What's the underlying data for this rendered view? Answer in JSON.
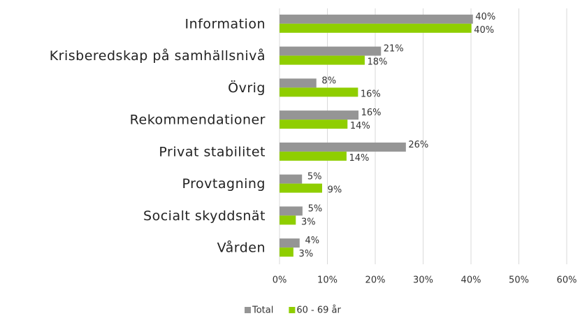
{
  "chart_data": {
    "type": "bar",
    "orientation": "horizontal",
    "categories": [
      "Information",
      "Krisberedskap på samhällsnivå",
      "Övrig",
      "Rekommendationer",
      "Privat stabilitet",
      "Provtagning",
      "Socialt skyddsnät",
      "Vården"
    ],
    "series": [
      {
        "name": "Total",
        "color": "#959595",
        "values": [
          40.4,
          21.2,
          7.7,
          16.5,
          26.4,
          4.7,
          4.8,
          4.2
        ],
        "value_labels": [
          "40%",
          "21%",
          "8%",
          "16%",
          "26%",
          "5%",
          "5%",
          "4%"
        ]
      },
      {
        "name": "60 - 69 år",
        "color": "#8fce00",
        "values": [
          40.1,
          17.8,
          16.4,
          14.2,
          14.0,
          8.9,
          3.4,
          2.9
        ],
        "value_labels": [
          "40%",
          "18%",
          "16%",
          "14%",
          "14%",
          "9%",
          "3%",
          "3%"
        ]
      }
    ],
    "xlim": [
      0,
      60
    ],
    "xticks": [
      {
        "value": 0,
        "label": "0%"
      },
      {
        "value": 10,
        "label": "10%"
      },
      {
        "value": 20,
        "label": "20%"
      },
      {
        "value": 30,
        "label": "30%"
      },
      {
        "value": 40,
        "label": "40%"
      },
      {
        "value": 50,
        "label": "50%"
      },
      {
        "value": 60,
        "label": "60%"
      }
    ],
    "grid": true,
    "legend": "bottom"
  }
}
